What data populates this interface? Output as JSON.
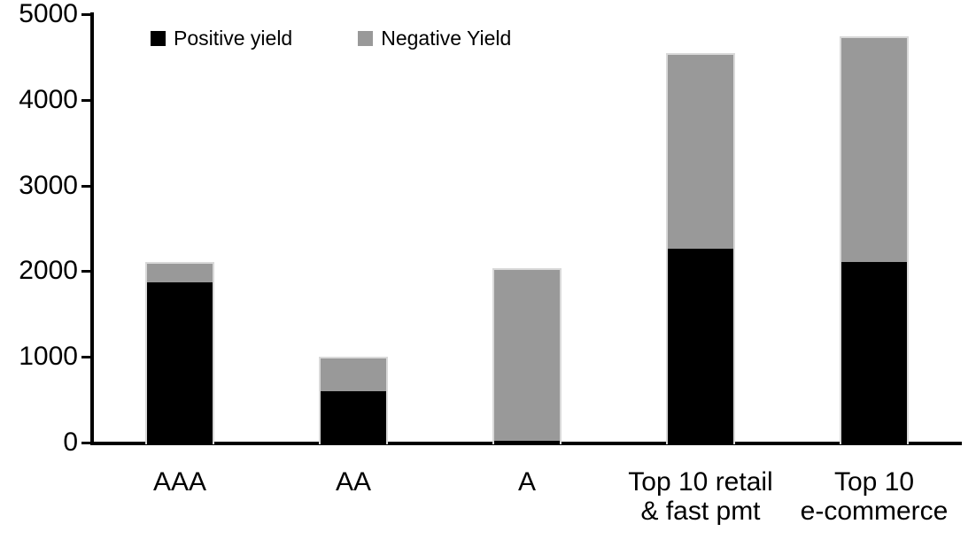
{
  "chart_data": {
    "type": "bar",
    "stacked": true,
    "title": "",
    "xlabel": "",
    "ylabel": "",
    "categories": [
      "AAA",
      "AA",
      "A",
      "Top 10 retail & fast pmt",
      "Top 10 e-commerce"
    ],
    "category_label_lines": [
      [
        "AAA"
      ],
      [
        "AA"
      ],
      [
        "A"
      ],
      [
        "Top 10 retail",
        "& fast pmt"
      ],
      [
        "Top 10",
        "e-commerce"
      ]
    ],
    "series": [
      {
        "name": "Positive yield",
        "color": "#000000",
        "values": [
          1890,
          620,
          40,
          2280,
          2130
        ]
      },
      {
        "name": "Negative Yield",
        "color": "#999999",
        "values": [
          220,
          380,
          1990,
          2270,
          2610
        ]
      }
    ],
    "ylim": [
      0,
      5000
    ],
    "yticks": [
      0,
      1000,
      2000,
      3000,
      4000,
      5000
    ],
    "grid": false,
    "legend_position": "top-left",
    "colors": {
      "axis": "#000000",
      "positive_series": "#000000",
      "negative_series": "#999999",
      "bar_outline": "#d9d9d9",
      "background": "#ffffff"
    }
  }
}
